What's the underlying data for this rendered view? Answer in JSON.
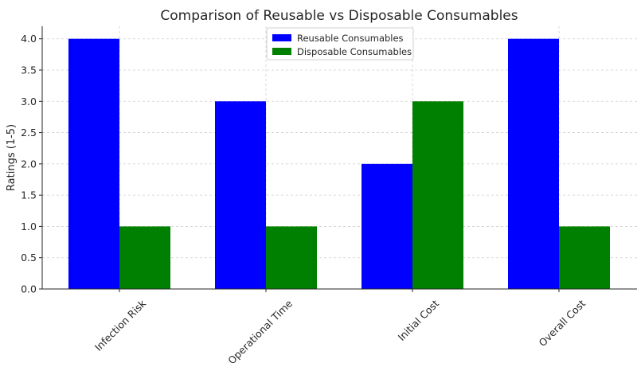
{
  "chart_data": {
    "type": "bar",
    "title": "Comparison of Reusable vs Disposable Consumables",
    "xlabel": "",
    "ylabel": "Ratings (1-5)",
    "categories": [
      "Infection Risk",
      "Operational Time",
      "Initial Cost",
      "Overall Cost"
    ],
    "series": [
      {
        "name": "Reusable Consumables",
        "color": "#0000ff",
        "values": [
          4,
          3,
          2,
          4
        ]
      },
      {
        "name": "Disposable Consumables",
        "color": "#008000",
        "values": [
          1,
          1,
          3,
          1
        ]
      }
    ],
    "ylim": [
      0,
      4.2
    ],
    "yticks": [
      "0.0",
      "0.5",
      "1.0",
      "1.5",
      "2.0",
      "2.5",
      "3.0",
      "3.5",
      "4.0"
    ],
    "grid": true,
    "legend": "top-center"
  }
}
